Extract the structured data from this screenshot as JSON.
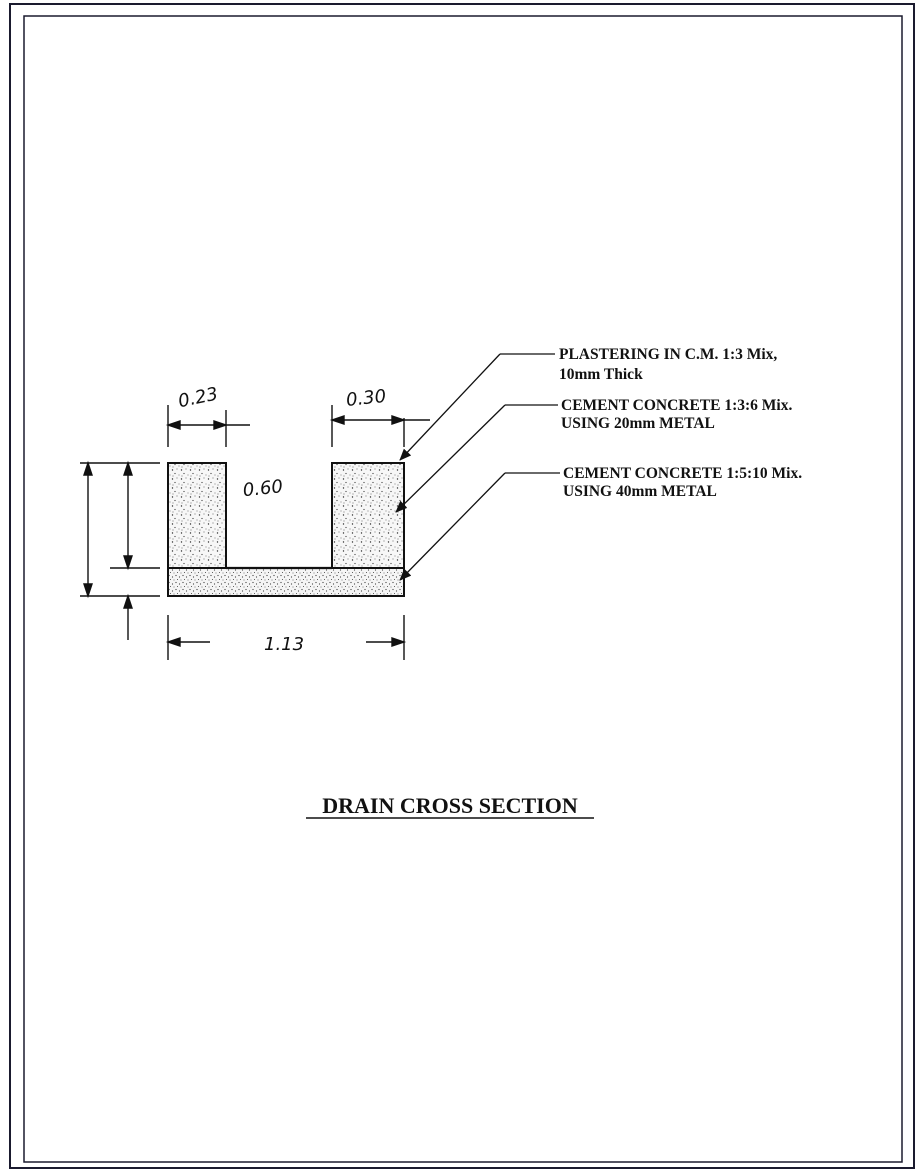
{
  "colors": {
    "page_border": "#1a1a2e",
    "line": "#111111",
    "fill": "#f4f4f4"
  },
  "annotations": {
    "plastering_line1": "PLASTERING IN C.M. 1:3 Mix,",
    "plastering_line2": "10mm Thick",
    "cc_136_line1": "CEMENT CONCRETE 1:3:6 Mix.",
    "cc_136_line2": "USING 20mm METAL",
    "cc_1510_line1": "CEMENT CONCRETE 1:5:10 Mix.",
    "cc_1510_line2": "USING 40mm METAL"
  },
  "dimensions": {
    "left_wall": "0.23",
    "right_wall": "0.30",
    "channel": "0.60",
    "total_width": "1.13"
  },
  "title": "DRAIN CROSS SECTION"
}
